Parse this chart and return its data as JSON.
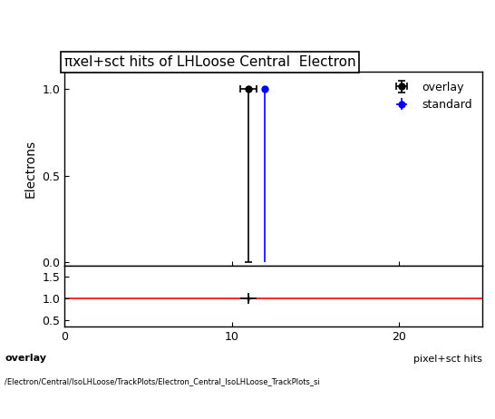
{
  "title": "πxel+sct hits of LHLoose Central  Electron",
  "ylabel_main": "Electrons",
  "xlabel_ratio": "pixel+sct hits",
  "overlay_x": 11,
  "overlay_y": 1.0,
  "overlay_xerr": 0.5,
  "overlay_yerr_low": 1.0,
  "overlay_yerr_high": 0.0,
  "standard_x": 12,
  "standard_y": 1.0,
  "standard_xerr": 0.0,
  "standard_yerr_low": 1.0,
  "standard_yerr_high": 0.0,
  "overlay_color": "#000000",
  "standard_color": "#0000FF",
  "ratio_red_color": "#FF0000",
  "xlim": [
    0,
    25
  ],
  "ylim_main": [
    -0.02,
    1.1
  ],
  "ylim_ratio": [
    0.35,
    1.75
  ],
  "ratio_yticks": [
    0.5,
    1.0,
    1.5
  ],
  "main_yticks": [
    0,
    0.5,
    1.0
  ],
  "xticks": [
    0,
    10,
    20
  ],
  "footer_text1": "overlay",
  "footer_text2": "/Electron/Central/IsoLHLoose/TrackPlots/Electron_Central_IsoLHLoose_TrackPlots_si",
  "legend_overlay": "overlay",
  "legend_standard": "standard"
}
